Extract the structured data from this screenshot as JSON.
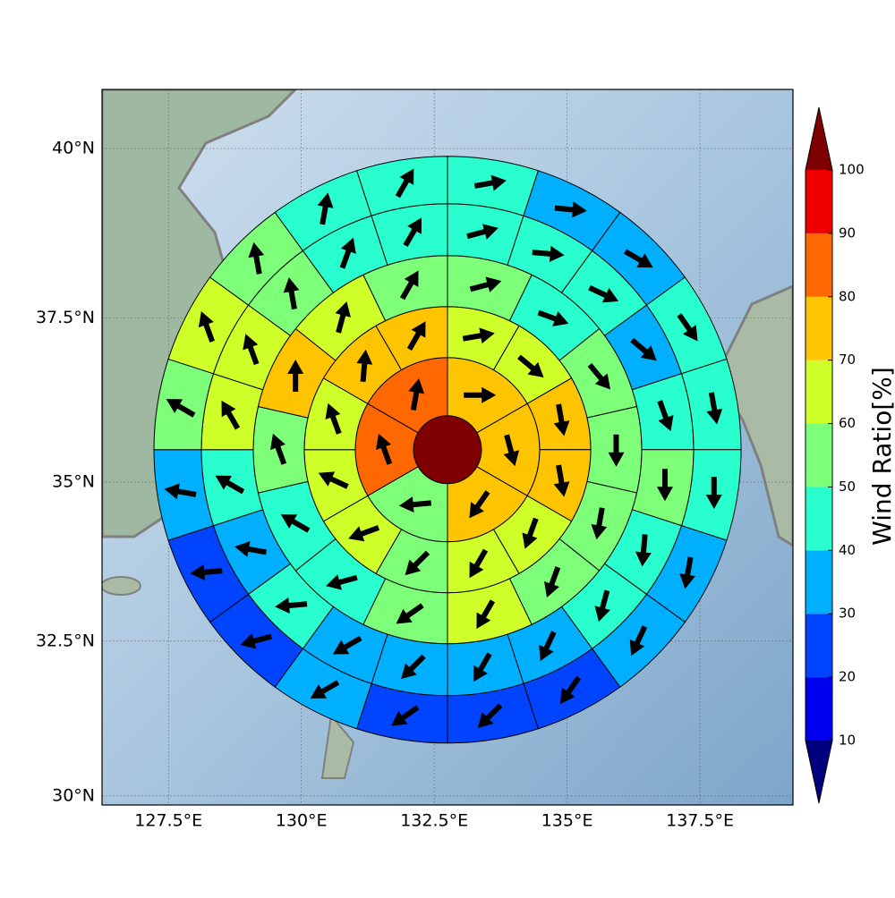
{
  "chart_data": {
    "type": "wind-rose-map",
    "projection": "mercator",
    "xlim": [
      126.25,
      139.25
    ],
    "ylim": [
      29.85,
      40.85
    ],
    "xticks": [
      {
        "value": 127.5,
        "label": "127.5°E"
      },
      {
        "value": 130,
        "label": "130°E"
      },
      {
        "value": 132.5,
        "label": "132.5°E"
      },
      {
        "value": 135,
        "label": "135°E"
      },
      {
        "value": 137.5,
        "label": "137.5°E"
      }
    ],
    "yticks": [
      {
        "value": 30,
        "label": "30°N"
      },
      {
        "value": 32.5,
        "label": "32.5°N"
      },
      {
        "value": 35,
        "label": "35°N"
      },
      {
        "value": 37.5,
        "label": "37.5°N"
      },
      {
        "value": 40,
        "label": "40°N"
      }
    ],
    "grid": true,
    "center": [
      132.75,
      35.5
    ],
    "colorbar": {
      "label": "Wind Ratio[%]",
      "ticks": [
        10,
        20,
        30,
        40,
        50,
        60,
        70,
        80,
        90,
        100
      ],
      "colors": [
        "#00007f",
        "#0000ee",
        "#0044ff",
        "#00b0ff",
        "#29ffce",
        "#7dff7a",
        "#ceff29",
        "#ffc400",
        "#ff6800",
        "#ee0000",
        "#7f0000"
      ]
    },
    "rings": [
      {
        "values": [
          100
        ]
      },
      {
        "values": [
          75,
          75,
          75,
          55,
          85,
          85
        ],
        "directions": [
          90,
          165,
          215,
          265,
          340,
          10
        ]
      },
      {
        "values": [
          65,
          65,
          72,
          72,
          65,
          62,
          55,
          62,
          65,
          62,
          75,
          75
        ],
        "directions": [
          80,
          130,
          170,
          170,
          200,
          210,
          225,
          250,
          295,
          340,
          5,
          30
        ]
      },
      {
        "values": [
          55,
          45,
          55,
          55,
          55,
          55,
          62,
          52,
          45,
          45,
          55,
          75,
          65,
          55
        ],
        "directions": [
          75,
          110,
          140,
          180,
          190,
          200,
          210,
          235,
          255,
          300,
          340,
          0,
          15,
          30
        ]
      },
      {
        "values": [
          45,
          45,
          42,
          35,
          45,
          55,
          45,
          42,
          35,
          35,
          35,
          35,
          42,
          35,
          45,
          62,
          62,
          55,
          45,
          45
        ],
        "directions": [
          75,
          95,
          115,
          130,
          160,
          180,
          185,
          195,
          205,
          210,
          225,
          240,
          265,
          280,
          300,
          330,
          340,
          350,
          20,
          30
        ]
      },
      {
        "values": [
          45,
          35,
          35,
          45,
          45,
          45,
          35,
          35,
          25,
          25,
          25,
          35,
          25,
          25,
          35,
          55,
          62,
          55,
          45,
          45
        ],
        "directions": [
          80,
          95,
          120,
          145,
          170,
          180,
          190,
          205,
          215,
          225,
          235,
          240,
          255,
          265,
          280,
          300,
          340,
          350,
          10,
          30
        ]
      }
    ]
  }
}
